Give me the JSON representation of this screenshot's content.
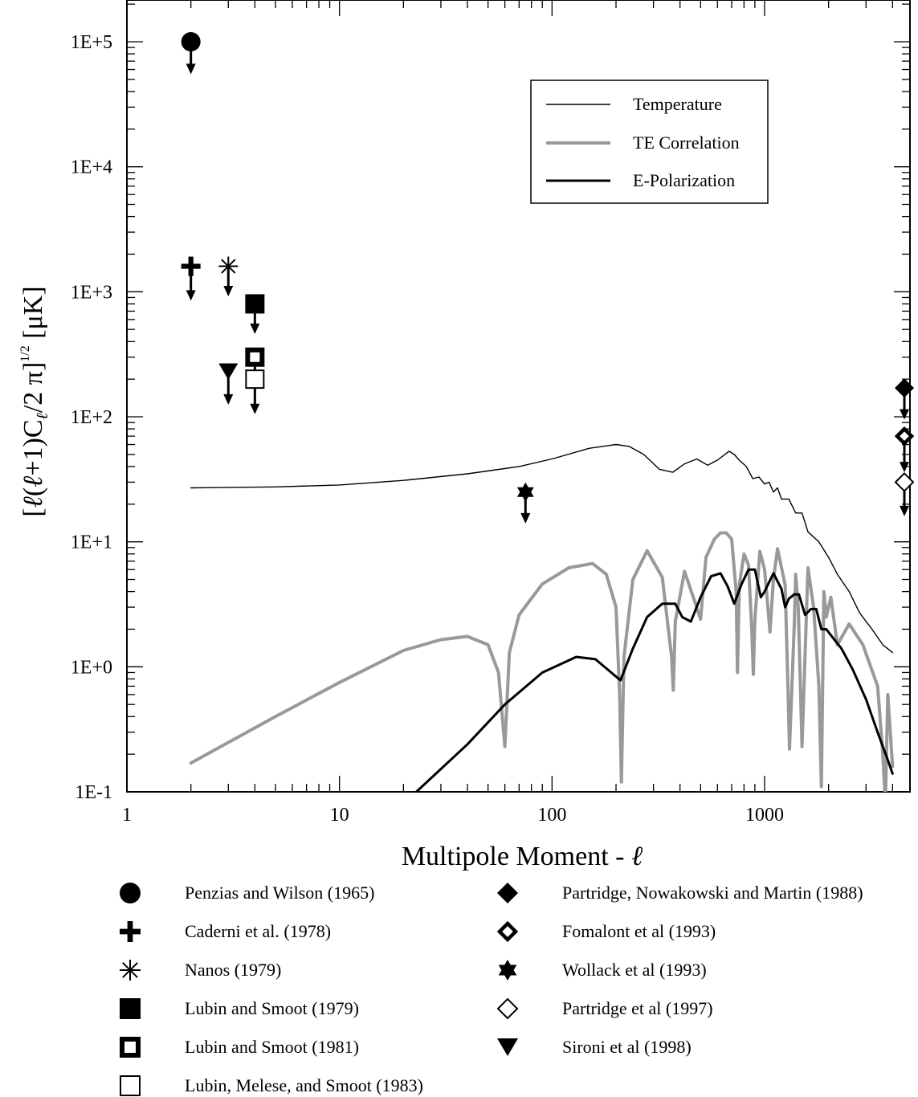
{
  "chart_data": {
    "type": "line",
    "xlabel": "Multipole Moment - ℓ",
    "ylabel": "[ℓ(ℓ+1)Cℓ/2 π]^1/2 [μK]",
    "x_scale": "log",
    "y_scale": "log",
    "xlim": [
      1,
      5000
    ],
    "ylim": [
      0.1,
      300000
    ],
    "x_ticks": [
      {
        "value": 1,
        "label": "1"
      },
      {
        "value": 10,
        "label": "10"
      },
      {
        "value": 100,
        "label": "100"
      },
      {
        "value": 1000,
        "label": "1000"
      }
    ],
    "y_ticks": [
      {
        "value": 0.1,
        "label": "1E-1"
      },
      {
        "value": 1,
        "label": "1E+0"
      },
      {
        "value": 10,
        "label": "1E+1"
      },
      {
        "value": 100,
        "label": "1E+2"
      },
      {
        "value": 1000,
        "label": "1E+3"
      },
      {
        "value": 10000,
        "label": "1E+4"
      },
      {
        "value": 100000,
        "label": "1E+5"
      }
    ],
    "legend_position": "top-right",
    "series": [
      {
        "name": "Temperature",
        "color": "#000000",
        "width": 1.4,
        "x": [
          2,
          5,
          10,
          20,
          40,
          70,
          100,
          150,
          200,
          230,
          270,
          320,
          370,
          420,
          480,
          540,
          600,
          680,
          720,
          760,
          820,
          880,
          940,
          1000,
          1050,
          1100,
          1150,
          1200,
          1300,
          1400,
          1500,
          1600,
          1800,
          2000,
          2200,
          2500,
          2800,
          3200,
          3600,
          4000
        ],
        "y": [
          27,
          27.5,
          28.5,
          31,
          35,
          40,
          46,
          56,
          60,
          58,
          50,
          38,
          36,
          42,
          46,
          41,
          45,
          53,
          50,
          45,
          40,
          32,
          33,
          29,
          30,
          25,
          27,
          22,
          22,
          17,
          17,
          12,
          10,
          7.5,
          5.5,
          4,
          2.7,
          2,
          1.5,
          1.3
        ]
      },
      {
        "name": "TE Correlation",
        "color": "#999999",
        "width": 4,
        "x": [
          2,
          5,
          10,
          20,
          30,
          40,
          50,
          56,
          60,
          63,
          70,
          90,
          120,
          155,
          180,
          200,
          208,
          212,
          218,
          240,
          280,
          330,
          365,
          372,
          380,
          420,
          470,
          500,
          530,
          580,
          620,
          660,
          700,
          735,
          745,
          760,
          800,
          840,
          870,
          885,
          900,
          950,
          1000,
          1060,
          1100,
          1150,
          1250,
          1290,
          1310,
          1380,
          1400,
          1440,
          1500,
          1600,
          1700,
          1800,
          1850,
          1900,
          1950,
          2050,
          2200,
          2500,
          2900,
          3400,
          3600,
          3700,
          3800,
          4000
        ],
        "y": [
          0.17,
          0.4,
          0.75,
          1.35,
          1.65,
          1.75,
          1.5,
          0.9,
          0.23,
          1.3,
          2.6,
          4.6,
          6.2,
          6.7,
          5.5,
          3.0,
          0.6,
          0.12,
          1.2,
          5.0,
          8.5,
          5.2,
          1.2,
          0.65,
          2.3,
          5.8,
          3.3,
          2.4,
          7.5,
          10.5,
          11.8,
          11.8,
          10.5,
          4.0,
          0.9,
          4.5,
          8.0,
          6.5,
          2.0,
          0.87,
          2.4,
          8.4,
          6.0,
          1.9,
          5.0,
          8.8,
          4.5,
          0.6,
          0.22,
          2.2,
          5.5,
          3.0,
          0.23,
          6.2,
          3.0,
          0.7,
          0.11,
          4.0,
          2.5,
          3.6,
          1.5,
          2.2,
          1.5,
          0.7,
          0.2,
          0.08,
          0.6,
          0.16
        ]
      },
      {
        "name": "E-Polarization",
        "color": "#000000",
        "width": 3,
        "x": [
          23,
          40,
          60,
          90,
          130,
          160,
          190,
          210,
          240,
          280,
          330,
          380,
          410,
          450,
          500,
          560,
          620,
          670,
          720,
          780,
          840,
          900,
          960,
          1000,
          1100,
          1200,
          1250,
          1300,
          1380,
          1450,
          1550,
          1650,
          1750,
          1850,
          1950,
          2100,
          2300,
          2600,
          3000,
          3400,
          3800,
          4000
        ],
        "y": [
          0.1,
          0.24,
          0.5,
          0.9,
          1.2,
          1.15,
          0.9,
          0.78,
          1.4,
          2.5,
          3.2,
          3.2,
          2.5,
          2.3,
          3.6,
          5.3,
          5.6,
          4.4,
          3.2,
          4.6,
          6.0,
          6.0,
          3.6,
          4.0,
          5.6,
          4.2,
          3.0,
          3.5,
          3.8,
          3.8,
          2.6,
          2.9,
          2.9,
          2.0,
          2.0,
          1.7,
          1.4,
          0.95,
          0.55,
          0.3,
          0.18,
          0.14
        ]
      }
    ],
    "references": [
      {
        "symbol": "circle-filled",
        "label": "Penzias and Wilson (1965)",
        "x": 2,
        "y": 100000,
        "tip": 55000
      },
      {
        "symbol": "cross",
        "label": "Caderni et al. (1978)",
        "x": 2,
        "y": 1600,
        "tip": 850
      },
      {
        "symbol": "asterisk",
        "label": "Nanos (1979)",
        "x": 3,
        "y": 1600,
        "tip": 920
      },
      {
        "symbol": "square-filled",
        "label": "Lubin and Smoot (1979)",
        "x": 4,
        "y": 800,
        "tip": 460
      },
      {
        "symbol": "square-bold",
        "label": "Lubin and Smoot (1981)",
        "x": 4,
        "y": 300,
        "tip": 160
      },
      {
        "symbol": "square-open",
        "label": "Lubin, Melese, and Smoot (1983)",
        "x": 4,
        "y": 200,
        "tip": 105
      },
      {
        "symbol": "diamond-filled",
        "label": "Partridge, Nowakowski and Martin (1988)",
        "x": 4800,
        "y": 170,
        "tip": 95
      },
      {
        "symbol": "diamond-bold",
        "label": "Fomalont et al (1993)",
        "x": 4800,
        "y": 70,
        "tip": 36
      },
      {
        "symbol": "star",
        "label": "Wollack et al (1993)",
        "x": 75,
        "y": 25,
        "tip": 14
      },
      {
        "symbol": "diamond-open",
        "label": "Partridge et al (1997)",
        "x": 4800,
        "y": 30,
        "tip": 16
      },
      {
        "symbol": "triangle-down",
        "label": "Sironi et al (1998)",
        "x": 3,
        "y": 230,
        "tip": 125
      }
    ]
  }
}
